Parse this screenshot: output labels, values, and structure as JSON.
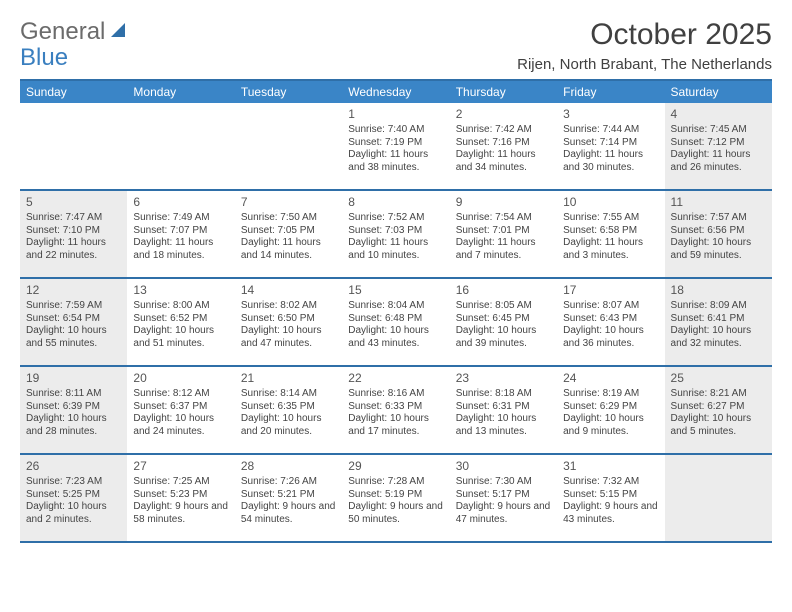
{
  "brand": {
    "part1": "General",
    "part2": "Blue"
  },
  "title": "October 2025",
  "location": "Rijen, North Brabant, The Netherlands",
  "colors": {
    "header_bg": "#3a85c7",
    "rule": "#2f6fa8",
    "shade": "#ececec",
    "text": "#444444",
    "title_text": "#404040"
  },
  "day_headers": [
    "Sunday",
    "Monday",
    "Tuesday",
    "Wednesday",
    "Thursday",
    "Friday",
    "Saturday"
  ],
  "weeks": [
    [
      {
        "day": "",
        "sunrise": "",
        "sunset": "",
        "daylight": "",
        "shade": false
      },
      {
        "day": "",
        "sunrise": "",
        "sunset": "",
        "daylight": "",
        "shade": false
      },
      {
        "day": "",
        "sunrise": "",
        "sunset": "",
        "daylight": "",
        "shade": false
      },
      {
        "day": "1",
        "sunrise": "Sunrise: 7:40 AM",
        "sunset": "Sunset: 7:19 PM",
        "daylight": "Daylight: 11 hours and 38 minutes.",
        "shade": false
      },
      {
        "day": "2",
        "sunrise": "Sunrise: 7:42 AM",
        "sunset": "Sunset: 7:16 PM",
        "daylight": "Daylight: 11 hours and 34 minutes.",
        "shade": false
      },
      {
        "day": "3",
        "sunrise": "Sunrise: 7:44 AM",
        "sunset": "Sunset: 7:14 PM",
        "daylight": "Daylight: 11 hours and 30 minutes.",
        "shade": false
      },
      {
        "day": "4",
        "sunrise": "Sunrise: 7:45 AM",
        "sunset": "Sunset: 7:12 PM",
        "daylight": "Daylight: 11 hours and 26 minutes.",
        "shade": true
      }
    ],
    [
      {
        "day": "5",
        "sunrise": "Sunrise: 7:47 AM",
        "sunset": "Sunset: 7:10 PM",
        "daylight": "Daylight: 11 hours and 22 minutes.",
        "shade": true
      },
      {
        "day": "6",
        "sunrise": "Sunrise: 7:49 AM",
        "sunset": "Sunset: 7:07 PM",
        "daylight": "Daylight: 11 hours and 18 minutes.",
        "shade": false
      },
      {
        "day": "7",
        "sunrise": "Sunrise: 7:50 AM",
        "sunset": "Sunset: 7:05 PM",
        "daylight": "Daylight: 11 hours and 14 minutes.",
        "shade": false
      },
      {
        "day": "8",
        "sunrise": "Sunrise: 7:52 AM",
        "sunset": "Sunset: 7:03 PM",
        "daylight": "Daylight: 11 hours and 10 minutes.",
        "shade": false
      },
      {
        "day": "9",
        "sunrise": "Sunrise: 7:54 AM",
        "sunset": "Sunset: 7:01 PM",
        "daylight": "Daylight: 11 hours and 7 minutes.",
        "shade": false
      },
      {
        "day": "10",
        "sunrise": "Sunrise: 7:55 AM",
        "sunset": "Sunset: 6:58 PM",
        "daylight": "Daylight: 11 hours and 3 minutes.",
        "shade": false
      },
      {
        "day": "11",
        "sunrise": "Sunrise: 7:57 AM",
        "sunset": "Sunset: 6:56 PM",
        "daylight": "Daylight: 10 hours and 59 minutes.",
        "shade": true
      }
    ],
    [
      {
        "day": "12",
        "sunrise": "Sunrise: 7:59 AM",
        "sunset": "Sunset: 6:54 PM",
        "daylight": "Daylight: 10 hours and 55 minutes.",
        "shade": true
      },
      {
        "day": "13",
        "sunrise": "Sunrise: 8:00 AM",
        "sunset": "Sunset: 6:52 PM",
        "daylight": "Daylight: 10 hours and 51 minutes.",
        "shade": false
      },
      {
        "day": "14",
        "sunrise": "Sunrise: 8:02 AM",
        "sunset": "Sunset: 6:50 PM",
        "daylight": "Daylight: 10 hours and 47 minutes.",
        "shade": false
      },
      {
        "day": "15",
        "sunrise": "Sunrise: 8:04 AM",
        "sunset": "Sunset: 6:48 PM",
        "daylight": "Daylight: 10 hours and 43 minutes.",
        "shade": false
      },
      {
        "day": "16",
        "sunrise": "Sunrise: 8:05 AM",
        "sunset": "Sunset: 6:45 PM",
        "daylight": "Daylight: 10 hours and 39 minutes.",
        "shade": false
      },
      {
        "day": "17",
        "sunrise": "Sunrise: 8:07 AM",
        "sunset": "Sunset: 6:43 PM",
        "daylight": "Daylight: 10 hours and 36 minutes.",
        "shade": false
      },
      {
        "day": "18",
        "sunrise": "Sunrise: 8:09 AM",
        "sunset": "Sunset: 6:41 PM",
        "daylight": "Daylight: 10 hours and 32 minutes.",
        "shade": true
      }
    ],
    [
      {
        "day": "19",
        "sunrise": "Sunrise: 8:11 AM",
        "sunset": "Sunset: 6:39 PM",
        "daylight": "Daylight: 10 hours and 28 minutes.",
        "shade": true
      },
      {
        "day": "20",
        "sunrise": "Sunrise: 8:12 AM",
        "sunset": "Sunset: 6:37 PM",
        "daylight": "Daylight: 10 hours and 24 minutes.",
        "shade": false
      },
      {
        "day": "21",
        "sunrise": "Sunrise: 8:14 AM",
        "sunset": "Sunset: 6:35 PM",
        "daylight": "Daylight: 10 hours and 20 minutes.",
        "shade": false
      },
      {
        "day": "22",
        "sunrise": "Sunrise: 8:16 AM",
        "sunset": "Sunset: 6:33 PM",
        "daylight": "Daylight: 10 hours and 17 minutes.",
        "shade": false
      },
      {
        "day": "23",
        "sunrise": "Sunrise: 8:18 AM",
        "sunset": "Sunset: 6:31 PM",
        "daylight": "Daylight: 10 hours and 13 minutes.",
        "shade": false
      },
      {
        "day": "24",
        "sunrise": "Sunrise: 8:19 AM",
        "sunset": "Sunset: 6:29 PM",
        "daylight": "Daylight: 10 hours and 9 minutes.",
        "shade": false
      },
      {
        "day": "25",
        "sunrise": "Sunrise: 8:21 AM",
        "sunset": "Sunset: 6:27 PM",
        "daylight": "Daylight: 10 hours and 5 minutes.",
        "shade": true
      }
    ],
    [
      {
        "day": "26",
        "sunrise": "Sunrise: 7:23 AM",
        "sunset": "Sunset: 5:25 PM",
        "daylight": "Daylight: 10 hours and 2 minutes.",
        "shade": true
      },
      {
        "day": "27",
        "sunrise": "Sunrise: 7:25 AM",
        "sunset": "Sunset: 5:23 PM",
        "daylight": "Daylight: 9 hours and 58 minutes.",
        "shade": false
      },
      {
        "day": "28",
        "sunrise": "Sunrise: 7:26 AM",
        "sunset": "Sunset: 5:21 PM",
        "daylight": "Daylight: 9 hours and 54 minutes.",
        "shade": false
      },
      {
        "day": "29",
        "sunrise": "Sunrise: 7:28 AM",
        "sunset": "Sunset: 5:19 PM",
        "daylight": "Daylight: 9 hours and 50 minutes.",
        "shade": false
      },
      {
        "day": "30",
        "sunrise": "Sunrise: 7:30 AM",
        "sunset": "Sunset: 5:17 PM",
        "daylight": "Daylight: 9 hours and 47 minutes.",
        "shade": false
      },
      {
        "day": "31",
        "sunrise": "Sunrise: 7:32 AM",
        "sunset": "Sunset: 5:15 PM",
        "daylight": "Daylight: 9 hours and 43 minutes.",
        "shade": false
      },
      {
        "day": "",
        "sunrise": "",
        "sunset": "",
        "daylight": "",
        "shade": true
      }
    ]
  ]
}
